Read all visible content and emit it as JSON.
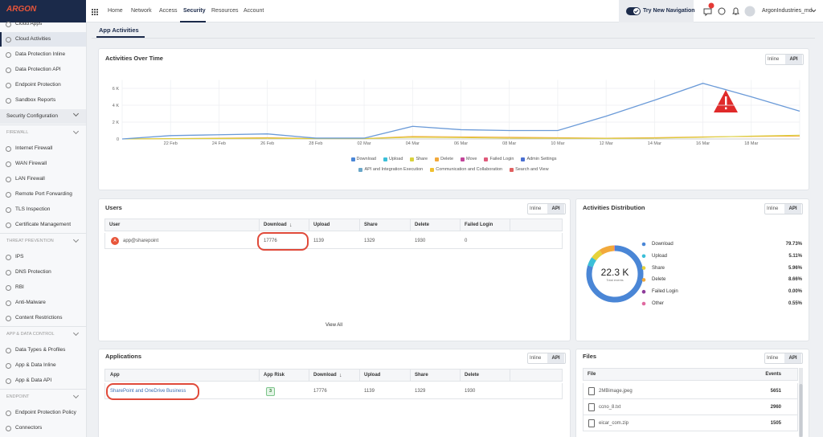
{
  "nav": {
    "logo": "ARGON",
    "menu": [
      "Home",
      "Network",
      "Access",
      "Security",
      "Resources",
      "Account"
    ],
    "try_new": "Try New Navigation",
    "badge": "1",
    "avatar": "AN",
    "user": "ArgonIndustries_md"
  },
  "sidebar": {
    "top": [
      "Cloud Apps",
      "Cloud Activities",
      "Data Protection Inline",
      "Data Protection API",
      "Endpoint Protection",
      "Sandbox Reports"
    ],
    "config": "Security Configuration",
    "groups": [
      {
        "title": "FIREWALL",
        "items": [
          "Internet Firewall",
          "WAN Firewall",
          "LAN Firewall",
          "Remote Port Forwarding",
          "TLS Inspection",
          "Certificate Management"
        ]
      },
      {
        "title": "THREAT PREVENTION",
        "items": [
          "IPS",
          "DNS Protection",
          "RBI",
          "Anti-Malware",
          "Content Restrictions"
        ]
      },
      {
        "title": "APP & DATA CONTROL",
        "items": [
          "Data Types & Profiles",
          "App & Data Inline",
          "App & Data API"
        ]
      },
      {
        "title": "ENDPOINT",
        "items": [
          "Endpoint Protection Policy",
          "Connectors"
        ]
      }
    ]
  },
  "tab": "App Activities",
  "toggle": [
    "Inline",
    "API"
  ],
  "chart_data": {
    "type": "line",
    "title": "Activities Over Time",
    "categories": [
      null,
      "22 Feb",
      "24 Feb",
      "26 Feb",
      "28 Feb",
      "02 Mar",
      "04 Mar",
      "06 Mar",
      "08 Mar",
      "10 Mar",
      "12 Mar",
      "14 Mar",
      "16 Mar",
      "18 Mar",
      null
    ],
    "series": [
      {
        "name": "Download",
        "color": "#6a9ad8",
        "values": [
          0,
          400,
          500,
          600,
          100,
          100,
          1500,
          1100,
          1000,
          1000,
          2700,
          4600,
          6600,
          5000,
          3300
        ]
      },
      {
        "name": "Share",
        "color": "#d9d23c",
        "values": [
          0,
          30,
          50,
          80,
          30,
          30,
          200,
          150,
          100,
          80,
          60,
          100,
          200,
          350,
          450
        ]
      },
      {
        "name": "Delete",
        "color": "#f2a93b",
        "values": [
          0,
          50,
          100,
          150,
          50,
          50,
          300,
          250,
          200,
          150,
          100,
          150,
          250,
          300,
          350
        ]
      }
    ],
    "ylim": [
      0,
      7000
    ],
    "yticks": [
      {
        "value": 0,
        "label": "0"
      },
      {
        "value": 2000,
        "label": "2 K"
      },
      {
        "value": 4000,
        "label": "4 K"
      },
      {
        "value": 6000,
        "label": "6 K"
      }
    ],
    "grid": true,
    "legend": [
      {
        "name": "Download",
        "color": "#4a86d6"
      },
      {
        "name": "Upload",
        "color": "#3bbfd8"
      },
      {
        "name": "Share",
        "color": "#d9d23c"
      },
      {
        "name": "Delete",
        "color": "#f2a93b"
      },
      {
        "name": "Move",
        "color": "#c2449a"
      },
      {
        "name": "Failed Login",
        "color": "#e05a7a"
      },
      {
        "name": "Admin Settings",
        "color": "#4a6fd1"
      },
      {
        "name": "API and Integration Execution",
        "color": "#6aa7c9"
      },
      {
        "name": "Communication and Collaboration",
        "color": "#f0c030"
      },
      {
        "name": "Search and View",
        "color": "#e06060"
      }
    ]
  },
  "users": {
    "title": "Users",
    "columns": [
      "User",
      "Download",
      "Upload",
      "Share",
      "Delete",
      "Failed Login"
    ],
    "rows": [
      {
        "avatar": "A",
        "cells": [
          "app@sharepoint",
          17776,
          1139,
          1329,
          1930,
          0
        ]
      }
    ],
    "view_all": "View All"
  },
  "distribution": {
    "title": "Activities Distribution",
    "total": "22.3 K",
    "total_caption": "Total events",
    "names": [
      "Download",
      "Upload",
      "Share",
      "Delete",
      "Failed Login",
      "Other"
    ],
    "values": [
      79.73,
      5.11,
      5.96,
      8.66,
      0,
      0.55
    ],
    "value_labels": [
      "79.73%",
      "5.11%",
      "5.96%",
      "8.66%",
      "0.00%",
      "0.55%"
    ],
    "colors": [
      "#4a86d6",
      "#3bbfd8",
      "#e6d23a",
      "#f2a93b",
      "#8e3c9a",
      "#e06aa0"
    ]
  },
  "applications": {
    "title": "Applications",
    "columns": [
      "App",
      "App Risk",
      "Download",
      "Upload",
      "Share",
      "Delete"
    ],
    "rows": [
      [
        "SharePoint and OneDrive Business",
        3,
        17776,
        1139,
        1329,
        1930
      ]
    ]
  },
  "files": {
    "title": "Files",
    "columns": [
      "File",
      "Events"
    ],
    "rows": [
      [
        "2MBimage.jpeg",
        5651
      ],
      [
        "ccno_8.txt",
        2960
      ],
      [
        "eicar_com.zip",
        1505
      ]
    ]
  }
}
